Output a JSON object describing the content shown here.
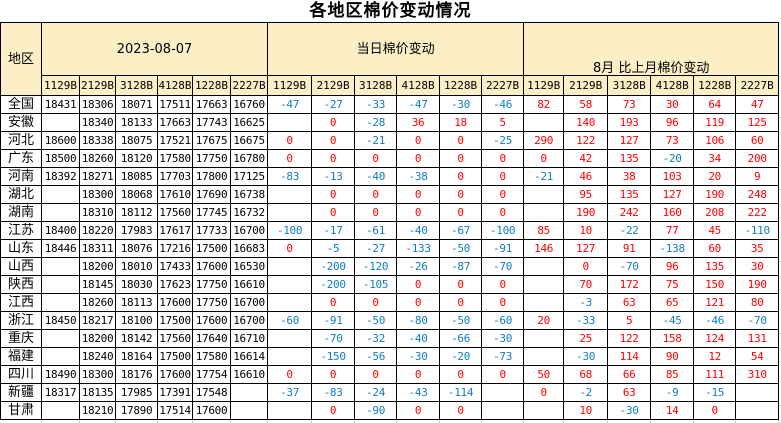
{
  "title": "各地区棉价变动情况",
  "table": {
    "region_header": "地区",
    "groups": [
      {
        "label": "2023-08-07",
        "columns": [
          "1129B",
          "2129B",
          "3128B",
          "4128B",
          "1228B",
          "2227B"
        ]
      },
      {
        "label": "当日棉价变动",
        "columns": [
          "1129B",
          "2129B",
          "3128B",
          "4128B",
          "1228B",
          "2227B"
        ]
      },
      {
        "label": "8月 比上月棉价变动",
        "columns": [
          "1129B",
          "2129B",
          "3128B",
          "4128B",
          "1228B",
          "2227B"
        ]
      }
    ],
    "rows": [
      {
        "region": "全国",
        "prices": [
          "18431",
          "18306",
          "18071",
          "17511",
          "17663",
          "16760"
        ],
        "day_change": [
          "-47",
          "-27",
          "-33",
          "-47",
          "-30",
          "-46"
        ],
        "month_change": [
          "82",
          "58",
          "73",
          "30",
          "64",
          "47"
        ]
      },
      {
        "region": "安徽",
        "prices": [
          "",
          "18340",
          "18133",
          "17663",
          "17743",
          "16625"
        ],
        "day_change": [
          "",
          "0",
          "-28",
          "36",
          "18",
          "5"
        ],
        "month_change": [
          "",
          "140",
          "193",
          "96",
          "119",
          "125"
        ]
      },
      {
        "region": "河北",
        "prices": [
          "18600",
          "18338",
          "18075",
          "17521",
          "17675",
          "16675"
        ],
        "day_change": [
          "0",
          "0",
          "-21",
          "0",
          "0",
          "-25"
        ],
        "month_change": [
          "290",
          "122",
          "127",
          "73",
          "106",
          "60"
        ]
      },
      {
        "region": "广东",
        "prices": [
          "18500",
          "18260",
          "18120",
          "17580",
          "17750",
          "16780"
        ],
        "day_change": [
          "0",
          "0",
          "0",
          "0",
          "0",
          "0"
        ],
        "month_change": [
          "0",
          "42",
          "135",
          "-20",
          "34",
          "200"
        ]
      },
      {
        "region": "河南",
        "prices": [
          "18392",
          "18271",
          "18085",
          "17703",
          "17800",
          "17125"
        ],
        "day_change": [
          "-83",
          "-13",
          "-40",
          "-38",
          "0",
          "0"
        ],
        "month_change": [
          "-21",
          "46",
          "38",
          "103",
          "20",
          "9"
        ]
      },
      {
        "region": "湖北",
        "prices": [
          "",
          "18300",
          "18068",
          "17610",
          "17690",
          "16738"
        ],
        "day_change": [
          "",
          "0",
          "0",
          "0",
          "0",
          "0"
        ],
        "month_change": [
          "",
          "95",
          "135",
          "127",
          "190",
          "248"
        ]
      },
      {
        "region": "湖南",
        "prices": [
          "",
          "18310",
          "18112",
          "17560",
          "17745",
          "16732"
        ],
        "day_change": [
          "",
          "0",
          "0",
          "0",
          "0",
          "0"
        ],
        "month_change": [
          "",
          "190",
          "242",
          "160",
          "208",
          "222"
        ]
      },
      {
        "region": "江苏",
        "prices": [
          "18400",
          "18220",
          "17983",
          "17617",
          "17733",
          "16700"
        ],
        "day_change": [
          "-100",
          "-17",
          "-61",
          "-40",
          "-67",
          "-100"
        ],
        "month_change": [
          "85",
          "10",
          "-22",
          "77",
          "45",
          "-110"
        ]
      },
      {
        "region": "山东",
        "prices": [
          "18446",
          "18311",
          "18076",
          "17216",
          "17500",
          "16683"
        ],
        "day_change": [
          "0",
          "-5",
          "-27",
          "-133",
          "-50",
          "-91"
        ],
        "month_change": [
          "146",
          "127",
          "91",
          "-138",
          "60",
          "35"
        ]
      },
      {
        "region": "山西",
        "prices": [
          "",
          "18200",
          "18010",
          "17433",
          "17600",
          "16530"
        ],
        "day_change": [
          "",
          "-200",
          "-120",
          "-26",
          "-87",
          "-70"
        ],
        "month_change": [
          "",
          "0",
          "-70",
          "96",
          "135",
          "30"
        ]
      },
      {
        "region": "陕西",
        "prices": [
          "",
          "18145",
          "18030",
          "17623",
          "17750",
          "16610"
        ],
        "day_change": [
          "",
          "-200",
          "-105",
          "0",
          "0",
          "0"
        ],
        "month_change": [
          "",
          "70",
          "172",
          "75",
          "150",
          "190"
        ]
      },
      {
        "region": "江西",
        "prices": [
          "",
          "18260",
          "18113",
          "17600",
          "17750",
          "16700"
        ],
        "day_change": [
          "",
          "0",
          "0",
          "0",
          "0",
          "0"
        ],
        "month_change": [
          "",
          "-3",
          "63",
          "65",
          "121",
          "80"
        ]
      },
      {
        "region": "浙江",
        "prices": [
          "18450",
          "18217",
          "18100",
          "17500",
          "17600",
          "16700"
        ],
        "day_change": [
          "-60",
          "-91",
          "-50",
          "-80",
          "-50",
          "-60"
        ],
        "month_change": [
          "20",
          "-33",
          "5",
          "-45",
          "-46",
          "-70"
        ]
      },
      {
        "region": "重庆",
        "prices": [
          "",
          "18200",
          "18142",
          "17560",
          "17640",
          "16710"
        ],
        "day_change": [
          "",
          "-70",
          "-32",
          "-40",
          "-66",
          "-30"
        ],
        "month_change": [
          "",
          "25",
          "122",
          "158",
          "124",
          "131"
        ]
      },
      {
        "region": "福建",
        "prices": [
          "",
          "18240",
          "18164",
          "17500",
          "17580",
          "16614"
        ],
        "day_change": [
          "",
          "-150",
          "-56",
          "-30",
          "-20",
          "-73"
        ],
        "month_change": [
          "",
          "-30",
          "114",
          "90",
          "12",
          "54"
        ]
      },
      {
        "region": "四川",
        "prices": [
          "18490",
          "18300",
          "18176",
          "17600",
          "17754",
          "16610"
        ],
        "day_change": [
          "0",
          "0",
          "0",
          "0",
          "0",
          "0"
        ],
        "month_change": [
          "50",
          "68",
          "66",
          "85",
          "111",
          "310"
        ]
      },
      {
        "region": "新疆",
        "prices": [
          "18317",
          "18135",
          "17985",
          "17391",
          "17548",
          ""
        ],
        "day_change": [
          "-37",
          "-83",
          "-24",
          "-43",
          "-114",
          ""
        ],
        "month_change": [
          "0",
          "-2",
          "63",
          "-9",
          "-15",
          ""
        ]
      },
      {
        "region": "甘肃",
        "prices": [
          "",
          "18210",
          "17890",
          "17514",
          "17600",
          ""
        ],
        "day_change": [
          "",
          "0",
          "-90",
          "0",
          "0",
          ""
        ],
        "month_change": [
          "",
          "10",
          "-30",
          "14",
          "0",
          ""
        ]
      }
    ]
  },
  "colors": {
    "header_bg": "#fcefc6",
    "positive_change": "#ff0000",
    "negative_change": "#0f7cc2",
    "border": "#000000"
  }
}
